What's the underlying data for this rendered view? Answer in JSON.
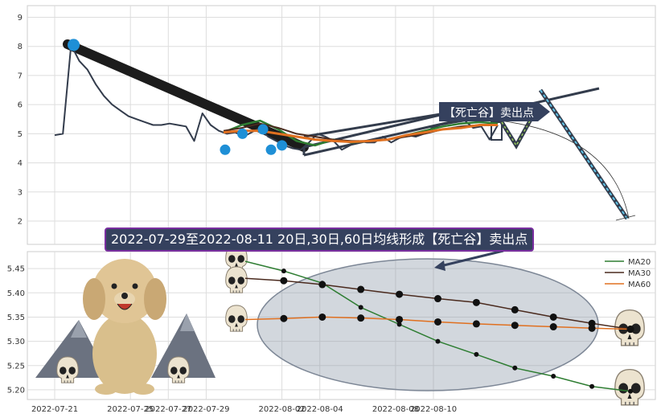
{
  "banner_text": "2022-07-29至2022-08-11 20日,30日,60日均线形成【死亡谷】卖出点",
  "signal_label": "【死亡谷】卖出点",
  "chart_data": [
    {
      "type": "line",
      "title": "",
      "ylim": [
        1.2,
        9.4
      ],
      "yticks": [
        "2",
        "3",
        "4",
        "5",
        "6",
        "7",
        "8",
        "9"
      ],
      "xlim": [
        "2022-07-21",
        "2022-08-12"
      ],
      "grid": true,
      "series": [
        {
          "name": "",
          "values": [
            4.95,
            5.0,
            8.05,
            7.5,
            7.2,
            6.7,
            6.3,
            6.0,
            5.8,
            5.6,
            5.5,
            5.4,
            5.3,
            5.3,
            5.35,
            5.3,
            5.25,
            4.75,
            5.7,
            5.3,
            5.1,
            5.0,
            5.05,
            4.9,
            5.05,
            5.2,
            4.9,
            4.75,
            4.6,
            4.5,
            4.45,
            4.7,
            5.0,
            4.9,
            4.75,
            4.45,
            4.6,
            4.75,
            4.7,
            4.7,
            4.9,
            4.7,
            4.85,
            4.95,
            4.9,
            5.0,
            5.2,
            5.3,
            5.35,
            5.4,
            5.45,
            5.2,
            5.25,
            4.8,
            5.3
          ]
        },
        {
          "name": "",
          "values": [
            5.05,
            5.3,
            5.45,
            5.15,
            4.75,
            4.6,
            4.8,
            4.7,
            4.75,
            4.8,
            4.95,
            5.1,
            5.25,
            5.35,
            5.4,
            5.35
          ]
        },
        {
          "name": "",
          "values": [
            5.1,
            5.2,
            5.35,
            5.2,
            5.0,
            4.9,
            4.8,
            4.75,
            4.75,
            4.8,
            4.9,
            5.0,
            5.15,
            5.25,
            5.3,
            5.3
          ]
        },
        {
          "name": "",
          "values": [
            5.05,
            5.1,
            5.1,
            5.0,
            4.9,
            4.8,
            4.75,
            4.72,
            4.75,
            4.8,
            4.95,
            5.05,
            5.15,
            5.2,
            5.3,
            5.3
          ]
        }
      ],
      "markers": [
        {
          "date": "2022-07-22",
          "value": 8.05
        },
        {
          "date": "2022-07-30",
          "value": 4.45
        },
        {
          "date": "2022-07-31",
          "value": 5.0
        },
        {
          "date": "2022-08-01",
          "value": 4.45
        },
        {
          "date": "2022-08-01",
          "value": 5.15
        },
        {
          "date": "2022-08-02",
          "value": 4.6
        }
      ]
    },
    {
      "type": "line",
      "title": "",
      "ylim": [
        5.18,
        5.485
      ],
      "yticks": [
        "5.20",
        "5.25",
        "5.30",
        "5.35",
        "5.40",
        "5.45"
      ],
      "xticks": [
        "2022-07-21",
        "2022-07-25",
        "2022-07-27",
        "2022-07-29",
        "2022-08-02",
        "2022-08-04",
        "2022-08-08",
        "2022-08-10"
      ],
      "legend_position": "top-right",
      "grid": true,
      "series": [
        {
          "name": "MA20",
          "color": "#2e7d32",
          "values": [
            5.465,
            5.445,
            5.42,
            5.37,
            5.335,
            5.3,
            5.273,
            5.245,
            5.228,
            5.207,
            5.197
          ]
        },
        {
          "name": "MA30",
          "color": "#4a2a1e",
          "values": [
            5.43,
            5.425,
            5.417,
            5.407,
            5.397,
            5.388,
            5.38,
            5.365,
            5.35,
            5.337,
            5.325
          ]
        },
        {
          "name": "MA60",
          "color": "#e07020",
          "values": [
            5.345,
            5.347,
            5.35,
            5.348,
            5.345,
            5.34,
            5.336,
            5.333,
            5.33,
            5.327,
            5.325
          ]
        }
      ]
    }
  ]
}
